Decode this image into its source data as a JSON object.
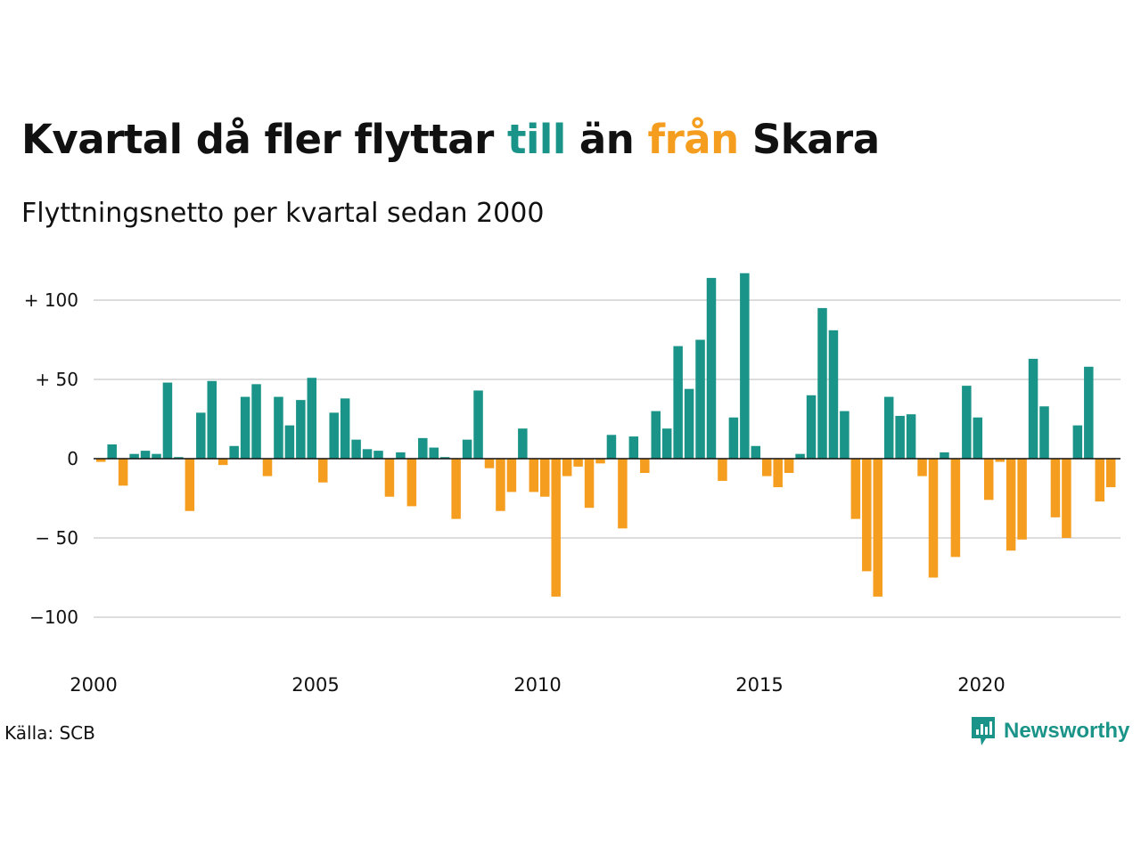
{
  "title": {
    "part1": "Kvartal då fler flyttar ",
    "till": "till",
    "part2": " än ",
    "fran": "från",
    "part3": " Skara"
  },
  "subtitle": "Flyttningsnetto per kvartal sedan 2000",
  "source": "Källa: SCB",
  "brand": {
    "name": "Newsworthy",
    "icon": "newsworthy-logo-icon"
  },
  "colors": {
    "positive": "#1a9488",
    "negative": "#f59d1e",
    "grid": "#dddddd",
    "zero_line": "#111111"
  },
  "chart_data": {
    "type": "bar",
    "start": "2000 Q1",
    "frequency": "quarterly",
    "grid": true,
    "ylim": [
      -115,
      115
    ],
    "y_ticks": [
      {
        "value": 100,
        "label": "+ 100"
      },
      {
        "value": 50,
        "label": "+  50"
      },
      {
        "value": 0,
        "label": "0"
      },
      {
        "value": -50,
        "label": "− 50"
      },
      {
        "value": -100,
        "label": "−100"
      }
    ],
    "x_ticks": [
      "2000",
      "2005",
      "2010",
      "2015",
      "2020"
    ],
    "values": [
      -2,
      9,
      -17,
      3,
      5,
      3,
      48,
      1,
      -33,
      29,
      49,
      -4,
      8,
      39,
      47,
      -11,
      39,
      21,
      37,
      51,
      -15,
      29,
      38,
      12,
      6,
      5,
      -24,
      4,
      -30,
      13,
      7,
      1,
      -38,
      12,
      43,
      -6,
      -33,
      -21,
      19,
      -21,
      -24,
      -87,
      -11,
      -5,
      -31,
      -3,
      15,
      -44,
      14,
      -9,
      30,
      19,
      71,
      44,
      75,
      114,
      -14,
      26,
      117,
      8,
      -11,
      -18,
      -9,
      3,
      40,
      95,
      81,
      30,
      -38,
      -71,
      -87,
      39,
      27,
      28,
      -11,
      -75,
      4,
      -62,
      46,
      26,
      -26,
      -2,
      -58,
      -51,
      63,
      33,
      -37,
      -50,
      21,
      58,
      -27,
      -18
    ]
  }
}
